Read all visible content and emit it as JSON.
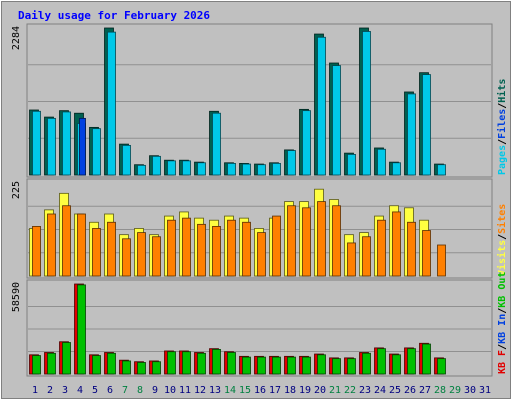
{
  "chart_data": {
    "type": "bar",
    "title": "Daily usage for February 2026",
    "categories": [
      "1",
      "2",
      "3",
      "4",
      "5",
      "6",
      "7",
      "8",
      "9",
      "10",
      "11",
      "12",
      "13",
      "14",
      "15",
      "16",
      "17",
      "18",
      "19",
      "20",
      "21",
      "22",
      "23",
      "24",
      "25",
      "26",
      "27",
      "28",
      "29",
      "30",
      "31"
    ],
    "weekend_days": [
      "7",
      "8",
      "14",
      "15",
      "21",
      "22",
      "28",
      "29"
    ],
    "colors": {
      "background": "#c0c0c0",
      "plot_background": "#c0c0c0",
      "frame": "#808080",
      "title": "#0000ff",
      "day_label": "#000080",
      "weekend_label": "#008040",
      "hits": "#006050",
      "files": "#00c8e8",
      "pages": "#0040e0",
      "visits": "#ffff40",
      "sites": "#ff8000",
      "kb_in": "#00c000",
      "kb_out": "#e00000",
      "gridline": "#909090"
    },
    "panels": [
      {
        "id": "top",
        "ymax_label": "2284",
        "ymax": 2284,
        "side_labels": [
          {
            "text": "Pages",
            "color": "#00c8e8"
          },
          {
            "text": "/",
            "color": "#000000"
          },
          {
            "text": "Files",
            "color": "#0040e0"
          },
          {
            "text": "/",
            "color": "#000000"
          },
          {
            "text": "Hits",
            "color": "#006050"
          }
        ],
        "series": [
          {
            "name": "Hits",
            "color": "#006050",
            "values": [
              1010,
              900,
              1000,
              960,
              740,
              2284,
              480,
              160,
              300,
              230,
              230,
              200,
              990,
              190,
              180,
              170,
              190,
              390,
              1020,
              2190,
              1740,
              340,
              2284,
              420,
              200,
              1290,
              1590,
              170,
              0,
              0,
              0
            ]
          },
          {
            "name": "Files",
            "color": "#00c8e8",
            "values": [
              990,
              880,
              980,
              800,
              720,
              2220,
              460,
              150,
              290,
              220,
              220,
              190,
              960,
              180,
              170,
              160,
              180,
              380,
              1000,
              2140,
              1700,
              320,
              2230,
              400,
              190,
              1260,
              1560,
              160,
              0,
              0,
              0
            ]
          },
          {
            "name": "Pages",
            "color": "#0040e0",
            "values": [
              0,
              0,
              0,
              880,
              0,
              0,
              0,
              0,
              0,
              0,
              0,
              0,
              0,
              0,
              0,
              0,
              0,
              0,
              0,
              0,
              0,
              0,
              0,
              0,
              0,
              0,
              0,
              0,
              0,
              0,
              0
            ]
          }
        ]
      },
      {
        "id": "middle",
        "ymax_label": "225",
        "ymax": 225,
        "side_labels": [
          {
            "text": "Visits",
            "color": "#ffff40"
          },
          {
            "text": "/",
            "color": "#000000"
          },
          {
            "text": "Sites",
            "color": "#ff8000"
          }
        ],
        "series": [
          {
            "name": "Visits",
            "color": "#ffff40",
            "values": [
              115,
              160,
              200,
              150,
              130,
              150,
              100,
              115,
              100,
              145,
              155,
              140,
              135,
              145,
              140,
              115,
              140,
              180,
              180,
              210,
              185,
              100,
              105,
              145,
              170,
              165,
              135,
              0,
              0,
              0,
              0
            ]
          },
          {
            "name": "Sites",
            "color": "#ff8000",
            "values": [
              120,
              150,
              170,
              150,
              115,
              130,
              90,
              105,
              95,
              135,
              140,
              125,
              120,
              135,
              130,
              105,
              145,
              170,
              165,
              180,
              170,
              80,
              95,
              135,
              155,
              130,
              110,
              75,
              0,
              0,
              0
            ]
          }
        ]
      },
      {
        "id": "bottom",
        "ymax_label": "58590",
        "ymax": 58590,
        "side_labels": [
          {
            "text": "KB F",
            "color": "#e00000"
          },
          {
            "text": "/",
            "color": "#000000"
          },
          {
            "text": "KB In",
            "color": "#0040e0"
          },
          {
            "text": "/",
            "color": "#000000"
          },
          {
            "text": "KB Out",
            "color": "#00c000"
          }
        ],
        "series": [
          {
            "name": "KB In",
            "color": "#e00000",
            "values": [
              12500,
              14000,
              21000,
              58590,
              12500,
              14000,
              9000,
              8000,
              8500,
              15000,
              15000,
              14000,
              16500,
              14500,
              11500,
              11500,
              11500,
              11500,
              11500,
              13000,
              10500,
              10500,
              14000,
              17000,
              13000,
              17000,
              20000,
              10500,
              0,
              0,
              0
            ]
          },
          {
            "name": "KB Out",
            "color": "#00c000",
            "values": [
              12000,
              13500,
              20500,
              58000,
              12000,
              13500,
              8500,
              7500,
              8000,
              14500,
              14500,
              13500,
              16000,
              14000,
              11000,
              11000,
              11000,
              11000,
              11000,
              12500,
              10000,
              10000,
              13500,
              16500,
              12500,
              16500,
              19500,
              10000,
              0,
              0,
              0
            ]
          }
        ]
      }
    ]
  }
}
